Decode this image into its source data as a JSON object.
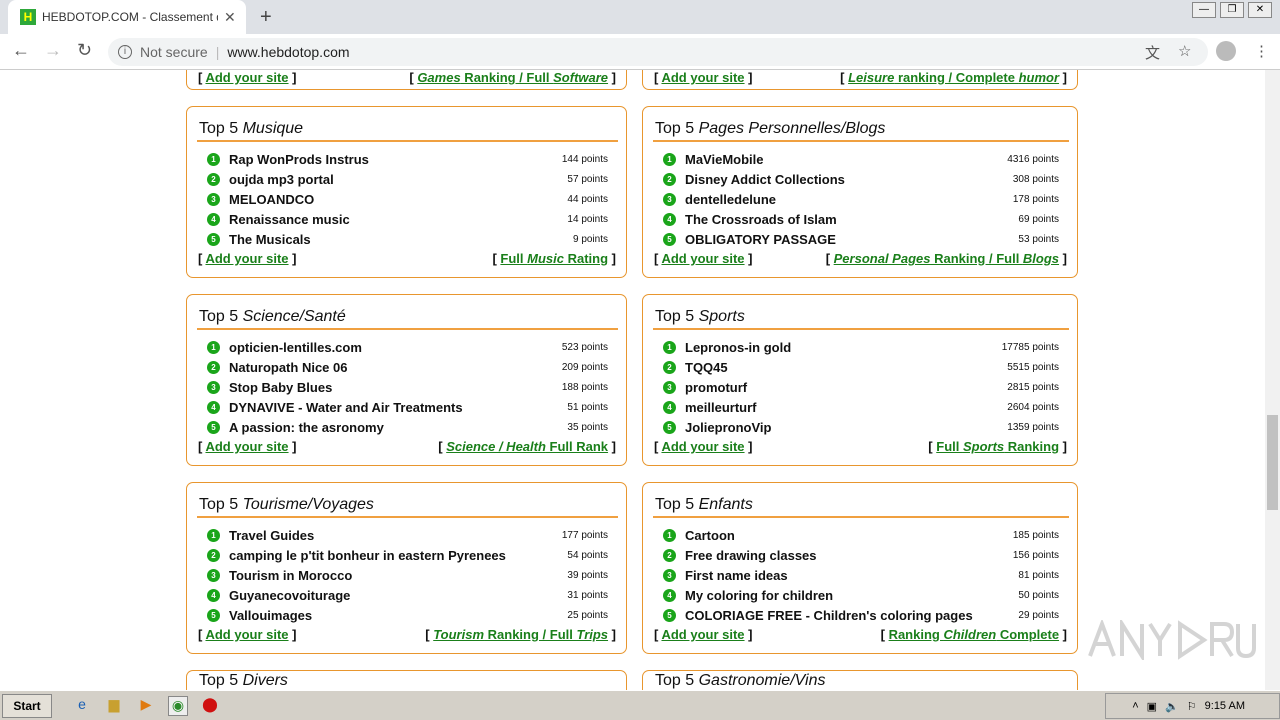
{
  "browser": {
    "tab_title": "HEBDOTOP.COM - Classement de sites",
    "not_secure": "Not secure",
    "url": "www.hebdotop.com"
  },
  "colors": {
    "border": "#e8962e",
    "link": "#1a7f1a",
    "badge": "#1aa51a"
  },
  "common": {
    "top": "Top 5",
    "add_site": "Add your site",
    "points": "points"
  },
  "partial_top": [
    {
      "footer": [
        {
          "t": "Games",
          "i": true
        },
        {
          "t": " Ranking / Full ",
          "i": false
        },
        {
          "t": "Software",
          "i": true
        }
      ]
    },
    {
      "footer": [
        {
          "t": "Leisure",
          "i": true
        },
        {
          "t": " ranking / Complete ",
          "i": false
        },
        {
          "t": "humor",
          "i": true
        }
      ]
    }
  ],
  "boxes": [
    {
      "category": "Musique",
      "items": [
        [
          "Rap WonProds Instrus",
          "144"
        ],
        [
          "oujda mp3 portal",
          "57"
        ],
        [
          "MELOANDCO",
          "44"
        ],
        [
          "Renaissance music",
          "14"
        ],
        [
          "The Musicals",
          "9"
        ]
      ],
      "footer": [
        {
          "t": "Full ",
          "i": false
        },
        {
          "t": "Music",
          "i": true
        },
        {
          "t": " Rating",
          "i": false
        }
      ]
    },
    {
      "category": "Pages Personnelles/Blogs",
      "items": [
        [
          "MaVieMobile",
          "4316"
        ],
        [
          "Disney Addict Collections",
          "308"
        ],
        [
          "dentelledelune",
          "178"
        ],
        [
          "The Crossroads of Islam",
          "69"
        ],
        [
          "OBLIGATORY PASSAGE",
          "53"
        ]
      ],
      "footer": [
        {
          "t": "Personal Pages",
          "i": true
        },
        {
          "t": " Ranking / Full ",
          "i": false
        },
        {
          "t": "Blogs",
          "i": true
        }
      ]
    },
    {
      "category": "Science/Santé",
      "items": [
        [
          "opticien-lentilles.com",
          "523"
        ],
        [
          "Naturopath Nice 06",
          "209"
        ],
        [
          "Stop Baby Blues",
          "188"
        ],
        [
          "DYNAVIVE - Water and Air Treatments",
          "51"
        ],
        [
          "A passion: the asronomy",
          "35"
        ]
      ],
      "footer": [
        {
          "t": "Science / Health",
          "i": true
        },
        {
          "t": " Full Rank",
          "i": false
        }
      ]
    },
    {
      "category": "Sports",
      "items": [
        [
          "Lepronos-in gold",
          "17785"
        ],
        [
          "TQQ45",
          "5515"
        ],
        [
          "promoturf",
          "2815"
        ],
        [
          "meilleurturf",
          "2604"
        ],
        [
          "JoliepronoVip",
          "1359"
        ]
      ],
      "footer": [
        {
          "t": "Full ",
          "i": false
        },
        {
          "t": "Sports",
          "i": true
        },
        {
          "t": " Ranking",
          "i": false
        }
      ]
    },
    {
      "category": "Tourisme/Voyages",
      "items": [
        [
          "Travel Guides",
          "177"
        ],
        [
          "camping le p'tit bonheur in eastern Pyrenees",
          "54"
        ],
        [
          "Tourism in Morocco",
          "39"
        ],
        [
          "Guyanecovoiturage",
          "31"
        ],
        [
          "Vallouimages",
          "25"
        ]
      ],
      "footer": [
        {
          "t": "Tourism",
          "i": true
        },
        {
          "t": " Ranking / Full ",
          "i": false
        },
        {
          "t": "Trips",
          "i": true
        }
      ]
    },
    {
      "category": "Enfants",
      "items": [
        [
          "Cartoon",
          "185"
        ],
        [
          "Free drawing classes",
          "156"
        ],
        [
          "First name ideas",
          "81"
        ],
        [
          "My coloring for children",
          "50"
        ],
        [
          "COLORIAGE FREE - Children's coloring pages",
          "29"
        ]
      ],
      "footer": [
        {
          "t": "Ranking ",
          "i": false
        },
        {
          "t": "Children",
          "i": true
        },
        {
          "t": " Complete",
          "i": false
        }
      ]
    }
  ],
  "partial_bottom": [
    {
      "category": "Divers"
    },
    {
      "category": "Gastronomie/Vins"
    }
  ],
  "taskbar": {
    "start": "Start",
    "clock": "9:15 AM"
  },
  "watermark": "ANY RUN"
}
